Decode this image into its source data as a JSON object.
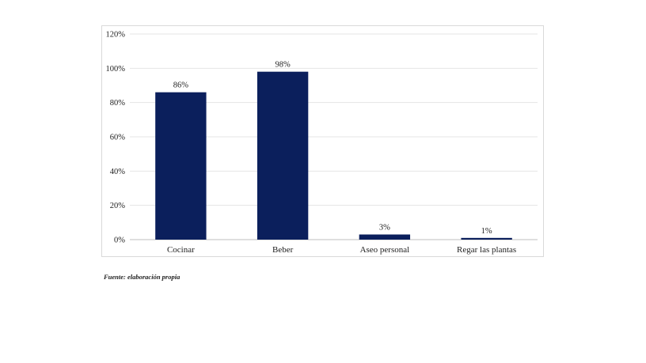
{
  "chart_data": {
    "type": "bar",
    "categories": [
      "Cocinar",
      "Beber",
      "Aseo personal",
      "Regar las plantas"
    ],
    "values": [
      86,
      98,
      3,
      1
    ],
    "data_labels": [
      "86%",
      "98%",
      "3%",
      "1%"
    ],
    "title": "",
    "xlabel": "",
    "ylabel": "",
    "ylim": [
      0,
      120
    ],
    "yticks": [
      0,
      20,
      40,
      60,
      80,
      100,
      120
    ],
    "ytick_labels": [
      "0%",
      "20%",
      "40%",
      "60%",
      "80%",
      "100%",
      "120%"
    ],
    "grid": true,
    "legend": "none",
    "bar_color": "#0b1f5c",
    "grid_color": "#e4e4e4"
  },
  "source_note": "Fuente: elaboración propia"
}
